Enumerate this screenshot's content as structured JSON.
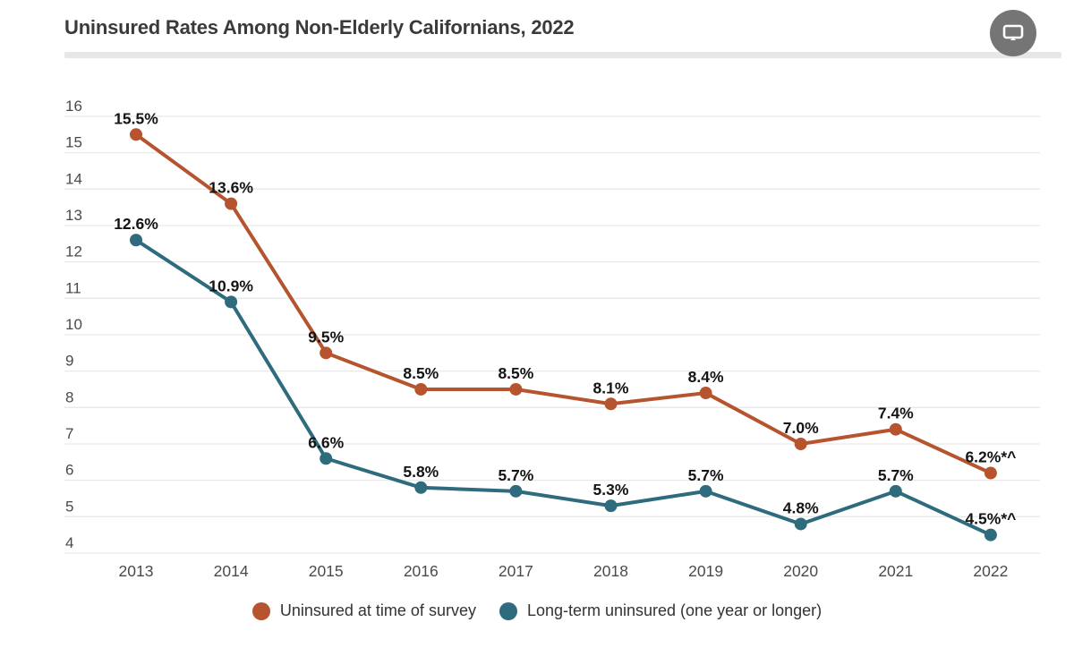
{
  "header": {
    "title": "Uninsured Rates Among Non-Elderly Californians, 2022",
    "badge_icon": "monitor-icon"
  },
  "chart_data": {
    "type": "line",
    "title": "Uninsured Rates Among Non-Elderly Californians, 2022",
    "x": [
      "2013",
      "2014",
      "2015",
      "2016",
      "2017",
      "2018",
      "2019",
      "2020",
      "2021",
      "2022"
    ],
    "ylim": [
      4,
      16
    ],
    "yticks": [
      4,
      5,
      6,
      7,
      8,
      9,
      10,
      11,
      12,
      13,
      14,
      15,
      16
    ],
    "grid": true,
    "legend_position": "bottom",
    "series": [
      {
        "name": "Uninsured at time of survey",
        "color": "#b5542e",
        "values": [
          15.5,
          13.6,
          9.5,
          8.5,
          8.5,
          8.1,
          8.4,
          7.0,
          7.4,
          6.2
        ],
        "point_labels": [
          "15.5%",
          "13.6%",
          "9.5%",
          "8.5%",
          "8.5%",
          "8.1%",
          "8.4%",
          "7.0%",
          "7.4%",
          "6.2%*^"
        ]
      },
      {
        "name": "Long-term uninsured (one year or longer)",
        "color": "#2d6b7d",
        "values": [
          12.6,
          10.9,
          6.6,
          5.8,
          5.7,
          5.3,
          5.7,
          4.8,
          5.7,
          4.5
        ],
        "point_labels": [
          "12.6%",
          "10.9%",
          "6.6%",
          "5.8%",
          "5.7%",
          "5.3%",
          "5.7%",
          "4.8%",
          "5.7%",
          "4.5%*^"
        ]
      }
    ],
    "colors": {
      "grid": "#e9e9e9",
      "axis_text": "#4a4a4a",
      "point_label_text": "#141414"
    }
  }
}
